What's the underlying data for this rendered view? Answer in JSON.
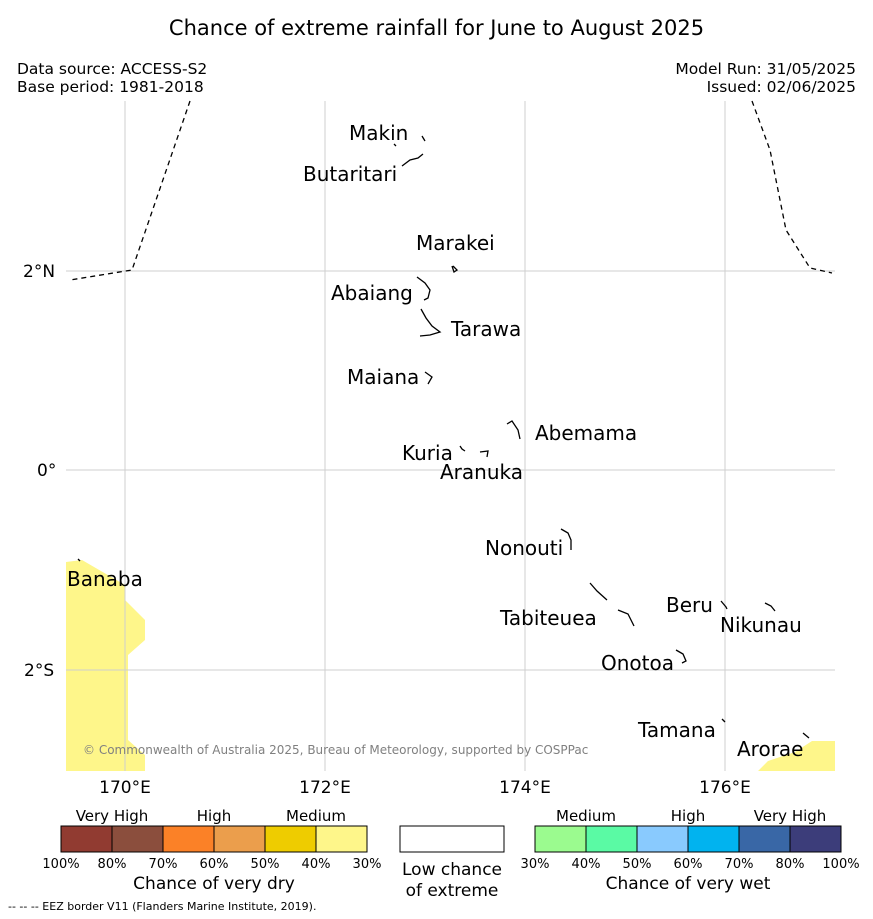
{
  "header": {
    "title": "Chance of extreme rainfall for June to August 2025",
    "data_source": "Data source: ACCESS-S2",
    "base_period": "Base period: 1981-2018",
    "model_run": "Model Run: 31/05/2025",
    "issued": "Issued: 02/06/2025"
  },
  "map": {
    "lon_ticks": [
      "170°E",
      "172°E",
      "174°E",
      "176°E"
    ],
    "lat_ticks": [
      "2°N",
      "0°",
      "2°S"
    ],
    "islands": [
      "Makin",
      "Butaritari",
      "Marakei",
      "Abaiang",
      "Tarawa",
      "Maiana",
      "Abemama",
      "Kuria",
      "Aranuka",
      "Nonouti",
      "Banaba",
      "Beru",
      "Tabiteuea",
      "Nikunau",
      "Onotoa",
      "Tamana",
      "Arorae"
    ],
    "copyright": "© Commonwealth of Australia 2025, Bureau of Meteorology, supported by COSPPac",
    "dry_shading_color": "#fef68a"
  },
  "legend": {
    "dry": {
      "groups": [
        "Very High",
        "High",
        "Medium"
      ],
      "ticks": [
        "100%",
        "80%",
        "70%",
        "60%",
        "50%",
        "40%",
        "30%"
      ],
      "colors": [
        "#913b31",
        "#8b4e3d",
        "#fb8127",
        "#eb9e4c",
        "#eecc00",
        "#fef68a"
      ],
      "caption": "Chance of very dry"
    },
    "low": {
      "caption_line1": "Low chance",
      "caption_line2": "of extreme",
      "color": "#ffffff"
    },
    "wet": {
      "groups": [
        "Medium",
        "High",
        "Very High"
      ],
      "ticks": [
        "30%",
        "40%",
        "50%",
        "60%",
        "70%",
        "80%",
        "100%"
      ],
      "colors": [
        "#9bfb8f",
        "#5afaa4",
        "#89cafe",
        "#01b3ef",
        "#3967a6",
        "#3c3d7a"
      ],
      "caption": "Chance of very wet"
    }
  },
  "footer": {
    "eez_note": "-- -- -- EEZ border V11 (Flanders Marine Institute, 2019)."
  }
}
